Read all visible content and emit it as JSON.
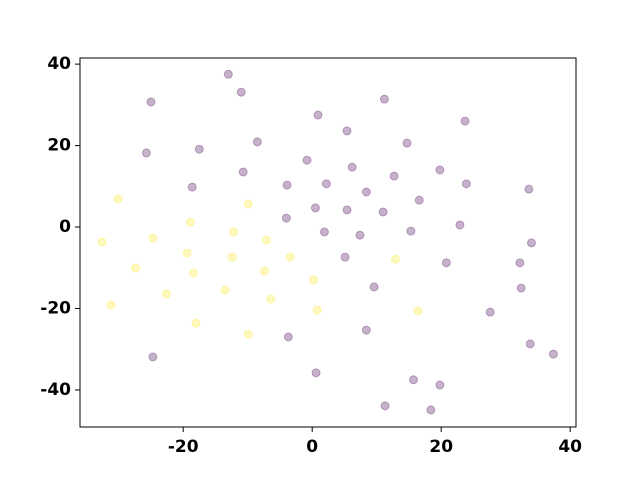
{
  "chart_data": {
    "type": "scatter",
    "xlim": [
      -36,
      40.9
    ],
    "ylim": [
      -49.1,
      41.5
    ],
    "xticks": [
      -20,
      0,
      20,
      40
    ],
    "yticks": [
      -40,
      -20,
      0,
      20,
      40
    ],
    "alpha": 0.3,
    "series": [
      {
        "color": "#440154",
        "x": [
          -13.0,
          -11.0,
          -25.0,
          11.2,
          0.9,
          23.7,
          5.4,
          -25.7,
          -17.5,
          -8.5,
          14.7,
          -0.8,
          6.2,
          -10.7,
          12.7,
          19.8,
          -18.6,
          -3.9,
          2.2,
          8.4,
          23.9,
          33.6,
          16.6,
          0.5,
          5.4,
          11.0,
          -4.0,
          22.9,
          1.9,
          15.3,
          7.4,
          34.0,
          5.1,
          20.8,
          32.2,
          9.6,
          32.4,
          27.6,
          8.4,
          -3.7,
          33.8,
          37.4,
          -24.7,
          0.6,
          15.7,
          19.8,
          11.3,
          18.4
        ],
        "values": [
          37.5,
          33.1,
          30.7,
          31.4,
          27.5,
          26.0,
          23.6,
          18.2,
          19.1,
          20.9,
          20.6,
          16.4,
          14.7,
          13.5,
          12.5,
          14.0,
          9.8,
          10.3,
          10.6,
          8.6,
          10.6,
          9.3,
          6.6,
          4.7,
          4.2,
          3.7,
          2.2,
          0.5,
          -1.2,
          -1.0,
          -2.0,
          -3.9,
          -7.4,
          -8.8,
          -8.8,
          -14.7,
          -15.0,
          -20.9,
          -25.3,
          -27.0,
          -28.7,
          -31.2,
          -31.9,
          -35.8,
          -37.5,
          -38.8,
          -43.9,
          -44.9
        ]
      },
      {
        "color": "#fde725",
        "x": [
          -30.1,
          -9.9,
          -18.9,
          -32.6,
          -24.7,
          -12.2,
          -7.1,
          -19.4,
          -12.4,
          -3.4,
          12.9,
          -27.4,
          -18.4,
          -7.4,
          0.2,
          -22.6,
          -13.5,
          -6.4,
          -31.2,
          0.8,
          16.4,
          -18.0,
          -9.9
        ],
        "values": [
          6.9,
          5.6,
          1.2,
          -3.7,
          -2.7,
          -1.2,
          -3.2,
          -6.4,
          -7.4,
          -7.4,
          -7.9,
          -10.1,
          -11.3,
          -10.8,
          -13.0,
          -16.4,
          -15.5,
          -17.7,
          -19.1,
          -20.4,
          -20.6,
          -23.6,
          -26.3
        ]
      }
    ]
  }
}
